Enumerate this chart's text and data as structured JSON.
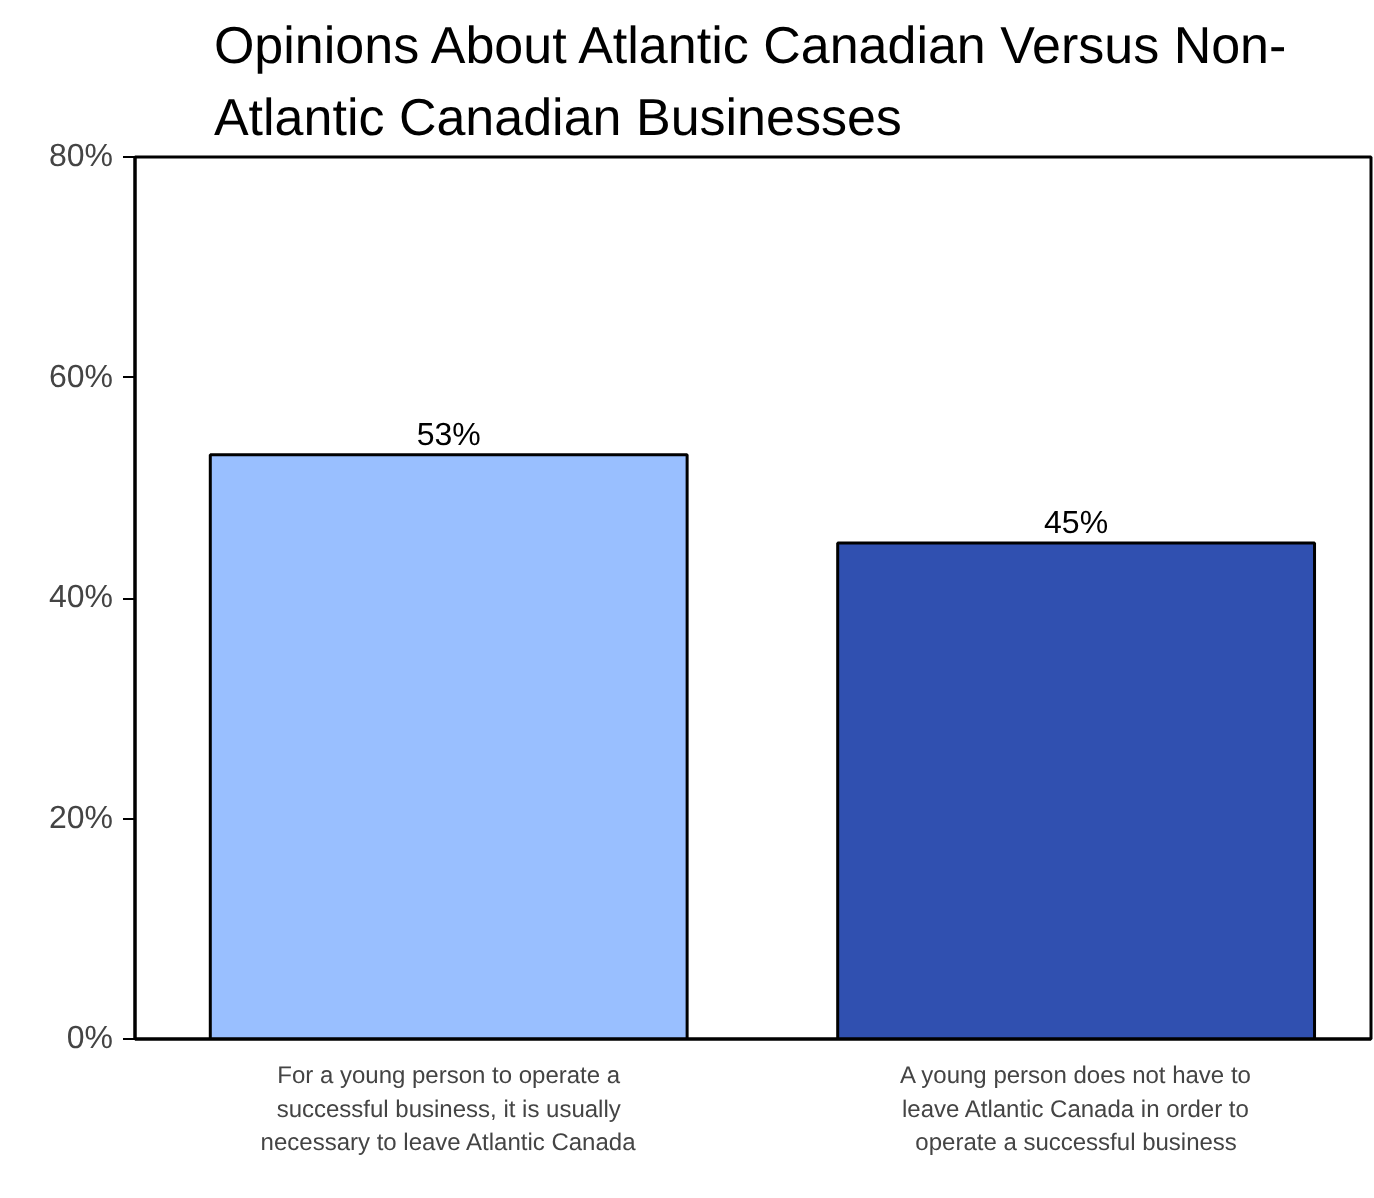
{
  "chart_data": {
    "type": "bar",
    "title": "Opinions About Atlantic Canadian Versus Non-Atlantic Canadian Businesses",
    "categories": [
      "For a young person to operate a successful business, it is usually necessary to leave Atlantic Canada",
      "A young person does not have to leave Atlantic Canada in order to operate a successful business"
    ],
    "values": [
      53,
      45
    ],
    "colors": [
      "#99bfff",
      "#3050b0"
    ],
    "value_labels": [
      "53%",
      "45%"
    ],
    "ylim": [
      0,
      80
    ],
    "yticks": [
      {
        "value": 0,
        "label": "0%"
      },
      {
        "value": 20,
        "label": "20%"
      },
      {
        "value": 40,
        "label": "40%"
      },
      {
        "value": 60,
        "label": "60%"
      },
      {
        "value": 80,
        "label": "80%"
      }
    ],
    "grid": false
  }
}
